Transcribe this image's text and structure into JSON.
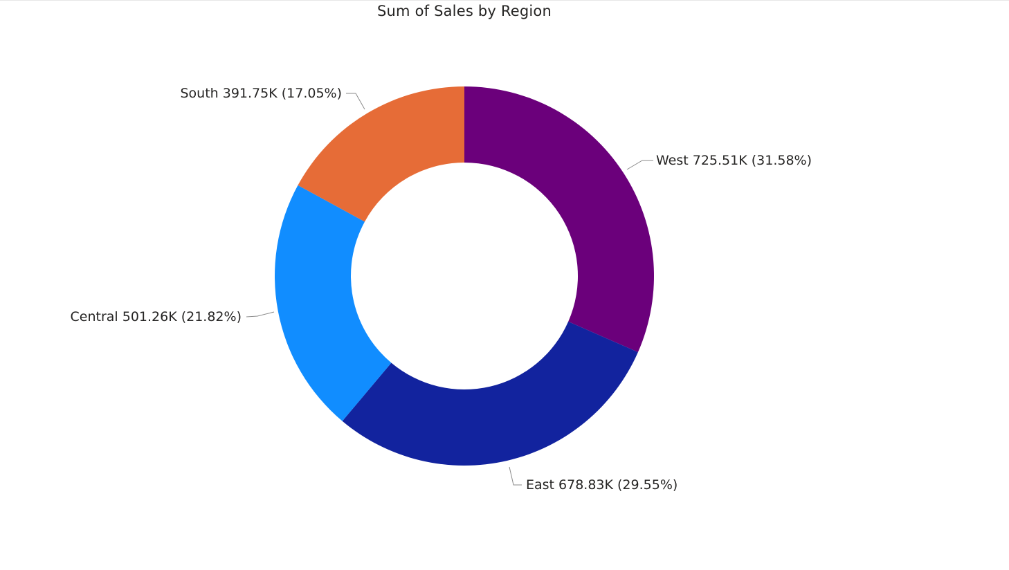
{
  "chart_data": {
    "type": "pie",
    "variant": "donut",
    "title": "Sum of Sales by Region",
    "slices": [
      {
        "name": "West",
        "value": 725.51,
        "value_label": "725.51K",
        "percent_label": "(31.58%)",
        "color": "#6B007B"
      },
      {
        "name": "East",
        "value": 678.83,
        "value_label": "678.83K",
        "percent_label": "(29.55%)",
        "color": "#12239E"
      },
      {
        "name": "Central",
        "value": 501.26,
        "value_label": "501.26K",
        "percent_label": "(21.82%)",
        "color": "#118DFF"
      },
      {
        "name": "South",
        "value": 391.75,
        "value_label": "391.75K",
        "percent_label": "(17.05%)",
        "color": "#E66C37"
      }
    ],
    "unit": "K",
    "legend": "none",
    "data_labels": "outside"
  }
}
